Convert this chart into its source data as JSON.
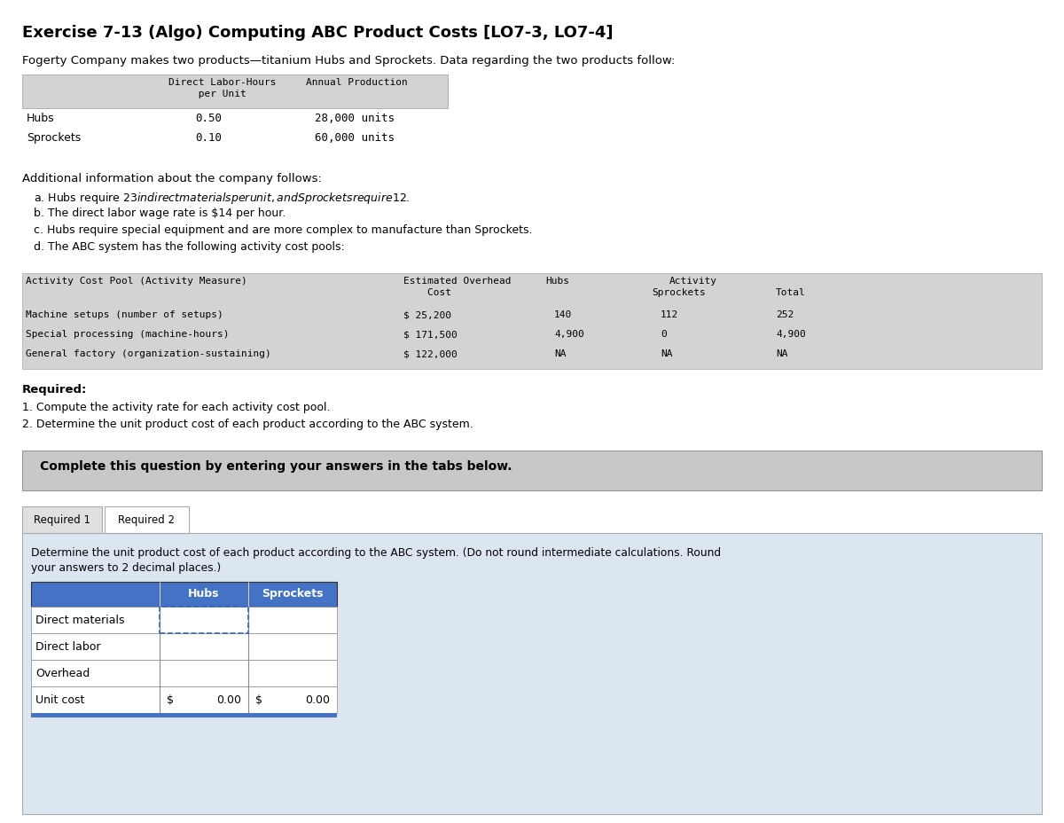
{
  "title": "Exercise 7-13 (Algo) Computing ABC Product Costs [LO7-3, LO7-4]",
  "intro_text": "Fogerty Company makes two products—titanium Hubs and Sprockets. Data regarding the two products follow:",
  "table1_rows": [
    [
      "Hubs",
      "0.50",
      "28,000 units"
    ],
    [
      "Sprockets",
      "0.10",
      "60,000 units"
    ]
  ],
  "additional_info_title": "Additional information about the company follows:",
  "additional_info": [
    "a. Hubs require $23 in direct materials per unit, and Sprockets require $12.",
    "b. The direct labor wage rate is $14 per hour.",
    "c. Hubs require special equipment and are more complex to manufacture than Sprockets.",
    "d. The ABC system has the following activity cost pools:"
  ],
  "abc_table_rows": [
    [
      "Machine setups (number of setups)",
      "$ 25,200",
      "140",
      "112",
      "252"
    ],
    [
      "Special processing (machine-hours)",
      "$ 171,500",
      "4,900",
      "0",
      "4,900"
    ],
    [
      "General factory (organization-sustaining)",
      "$ 122,000",
      "NA",
      "NA",
      "NA"
    ]
  ],
  "required_items": [
    "1. Compute the activity rate for each activity cost pool.",
    "2. Determine the unit product cost of each product according to the ABC system."
  ],
  "complete_text": "Complete this question by entering your answers in the tabs below.",
  "tab1_label": "Required 1",
  "tab2_label": "Required 2",
  "req2_instruction_line1": "Determine the unit product cost of each product according to the ABC system. (Do not round intermediate calculations. Round",
  "req2_instruction_line2": "your answers to 2 decimal places.)",
  "req2_row_labels": [
    "Direct materials",
    "Direct labor",
    "Overhead",
    "Unit cost"
  ],
  "req2_unit_cost": [
    "0.00",
    "0.00"
  ],
  "bg_white": "#ffffff",
  "bg_light_gray": "#d9d9d9",
  "bg_medium_gray": "#c8c8c8",
  "bg_blue": "#4472c4",
  "bg_content_blue": "#dce6f1",
  "color_black": "#000000",
  "color_white": "#ffffff",
  "border_gray": "#999999",
  "border_dark": "#555555"
}
